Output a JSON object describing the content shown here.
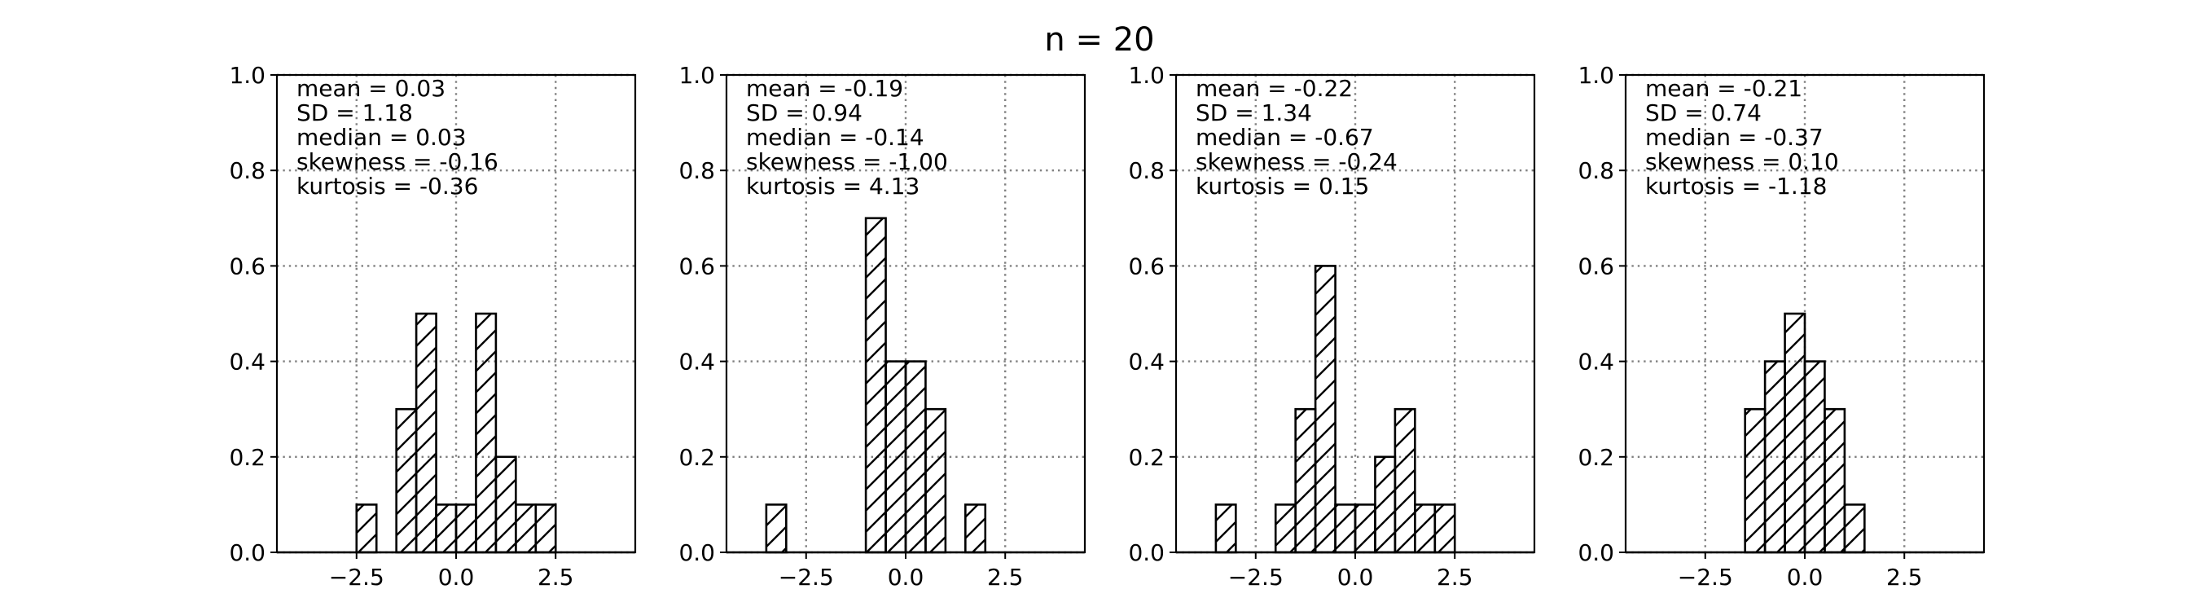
{
  "chart_data": {
    "title": "n = 20",
    "type": "bar",
    "ylim": [
      0,
      1.0
    ],
    "xlim": [
      -4.5,
      4.5
    ],
    "yticks": [
      "0.0",
      "0.2",
      "0.4",
      "0.6",
      "0.8",
      "1.0"
    ],
    "xticks": [
      "−2.5",
      "0.0",
      "2.5"
    ],
    "grid": true,
    "bin_width": 0.5,
    "colors": {
      "edge": "#000000",
      "grid": "#808080",
      "background": "#ffffff"
    },
    "panels": [
      {
        "stats": [
          "mean = 0.03",
          "SD = 1.18",
          "median = 0.03",
          "skewness = -0.16",
          "kurtosis = -0.36"
        ],
        "bins": [
          {
            "x0": -2.5,
            "y": 0.1
          },
          {
            "x0": -2.0,
            "y": 0.0
          },
          {
            "x0": -1.5,
            "y": 0.3
          },
          {
            "x0": -1.0,
            "y": 0.5
          },
          {
            "x0": -0.5,
            "y": 0.1
          },
          {
            "x0": 0.0,
            "y": 0.1
          },
          {
            "x0": 0.5,
            "y": 0.5
          },
          {
            "x0": 1.0,
            "y": 0.2
          },
          {
            "x0": 1.5,
            "y": 0.1
          },
          {
            "x0": 2.0,
            "y": 0.1
          }
        ]
      },
      {
        "stats": [
          "mean = -0.19",
          "SD = 0.94",
          "median = -0.14",
          "skewness = -1.00",
          "kurtosis = 4.13"
        ],
        "bins": [
          {
            "x0": -3.5,
            "y": 0.1
          },
          {
            "x0": -3.0,
            "y": 0.0
          },
          {
            "x0": -2.5,
            "y": 0.0
          },
          {
            "x0": -2.0,
            "y": 0.0
          },
          {
            "x0": -1.5,
            "y": 0.0
          },
          {
            "x0": -1.0,
            "y": 0.7
          },
          {
            "x0": -0.5,
            "y": 0.4
          },
          {
            "x0": 0.0,
            "y": 0.4
          },
          {
            "x0": 0.5,
            "y": 0.3
          },
          {
            "x0": 1.0,
            "y": 0.0
          },
          {
            "x0": 1.5,
            "y": 0.1
          }
        ]
      },
      {
        "stats": [
          "mean = -0.22",
          "SD = 1.34",
          "median = -0.67",
          "skewness = -0.24",
          "kurtosis = 0.15"
        ],
        "bins": [
          {
            "x0": -3.5,
            "y": 0.1
          },
          {
            "x0": -3.0,
            "y": 0.0
          },
          {
            "x0": -2.5,
            "y": 0.0
          },
          {
            "x0": -2.0,
            "y": 0.1
          },
          {
            "x0": -1.5,
            "y": 0.3
          },
          {
            "x0": -1.0,
            "y": 0.6
          },
          {
            "x0": -0.5,
            "y": 0.1
          },
          {
            "x0": 0.0,
            "y": 0.1
          },
          {
            "x0": 0.5,
            "y": 0.2
          },
          {
            "x0": 1.0,
            "y": 0.3
          },
          {
            "x0": 1.5,
            "y": 0.1
          },
          {
            "x0": 2.0,
            "y": 0.1
          }
        ]
      },
      {
        "stats": [
          "mean = -0.21",
          "SD = 0.74",
          "median = -0.37",
          "skewness = 0.10",
          "kurtosis = -1.18"
        ],
        "bins": [
          {
            "x0": -1.5,
            "y": 0.3
          },
          {
            "x0": -1.0,
            "y": 0.4
          },
          {
            "x0": -0.5,
            "y": 0.5
          },
          {
            "x0": 0.0,
            "y": 0.4
          },
          {
            "x0": 0.5,
            "y": 0.3
          },
          {
            "x0": 1.0,
            "y": 0.1
          }
        ]
      }
    ]
  }
}
